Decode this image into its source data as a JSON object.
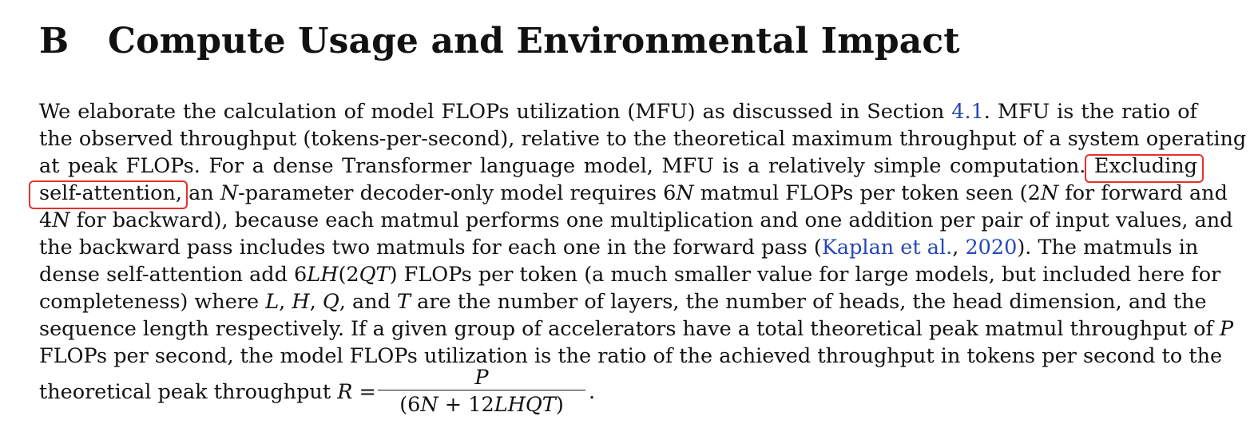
{
  "section": {
    "number": "B",
    "title": "Compute Usage and Environmental Impact"
  },
  "paragraph": {
    "l1": {
      "a": "We elaborate the calculation of model FLOPs utilization (MFU) as discussed in Section ",
      "ref": "4.1",
      "b": ". MFU is the ratio of"
    },
    "l2": "the observed throughput (tokens-per-second), relative to the theoretical maximum throughput of a system operating",
    "l3": "at peak FLOPs. For a dense Transformer language model, MFU is a relatively simple computation. Excluding",
    "l4": {
      "a": "self-attention, an ",
      "n": "N",
      "b": "-parameter decoder-only model requires 6",
      "n2": "N",
      "c": " matmul FLOPs per token seen (2",
      "n3": "N",
      "d": " for forward and"
    },
    "l5": {
      "a": "4",
      "n": "N",
      "b": " for backward), because each matmul performs one multiplication and one addition per pair of input values, and"
    },
    "l6": {
      "a": "the backward pass includes two matmuls for each one in the forward pass (",
      "cite_author": "Kaplan et al.",
      "sep": ", ",
      "cite_year": "2020",
      "b": "). The matmuls in"
    },
    "l7": {
      "a": "dense self-attention add 6",
      "m1": "LH",
      "b": "(2",
      "m2": "QT",
      "c": ") FLOPs per token (a much smaller value for large models, but included here for"
    },
    "l8": {
      "a": "completeness) where ",
      "L": "L",
      "s1": ", ",
      "H": "H",
      "s2": ", ",
      "Q": "Q",
      "s3": ", and ",
      "T": "T",
      "b": " are the number of layers, the number of heads, the head dimension, and the"
    },
    "l9": {
      "a": "sequence length respectively. If a given group of accelerators have a total theoretical peak matmul throughput of ",
      "P": "P"
    },
    "l10": "FLOPs per second, the model FLOPs utilization is the ratio of the achieved throughput in tokens per second to the",
    "l11": {
      "a": "theoretical peak throughput ",
      "R": "R",
      "eq": " = ",
      "numerator": "P",
      "denom_a": "(6",
      "denom_n": "N",
      "denom_b": " + 12",
      "denom_m": "LHQT",
      "denom_c": ")",
      "period": "."
    }
  },
  "colors": {
    "link": "#2547b8",
    "highlight_box": "#e8302a"
  }
}
